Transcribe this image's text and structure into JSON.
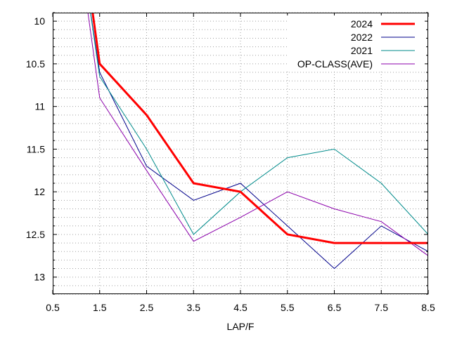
{
  "chart_data": {
    "type": "line",
    "title": "",
    "xlabel": "LAP/F",
    "ylabel": "",
    "xlim": [
      0.5,
      8.5
    ],
    "ylim": [
      9.9,
      13.2
    ],
    "y_inverted": true,
    "x_ticks": [
      "0.5",
      "1.5",
      "2.5",
      "3.5",
      "4.5",
      "5.5",
      "6.5",
      "7.5",
      "8.5"
    ],
    "y_ticks": [
      "10",
      "10.5",
      "11",
      "11.5",
      "12",
      "12.5",
      "13"
    ],
    "grid": true,
    "legend_position": "top-right",
    "series": [
      {
        "name": "2024",
        "color": "#ff0000",
        "weight": "thick",
        "points": [
          [
            1.3,
            9.7
          ],
          [
            1.5,
            10.5
          ],
          [
            2.5,
            11.1
          ],
          [
            3.5,
            11.9
          ],
          [
            4.5,
            12.0
          ],
          [
            5.5,
            12.5
          ],
          [
            6.5,
            12.6
          ],
          [
            7.5,
            12.6
          ],
          [
            8.5,
            12.6
          ]
        ]
      },
      {
        "name": "2022",
        "color": "#00008b",
        "weight": "thin",
        "points": [
          [
            1.25,
            9.7
          ],
          [
            1.5,
            10.6
          ],
          [
            2.5,
            11.7
          ],
          [
            3.5,
            12.1
          ],
          [
            4.5,
            11.9
          ],
          [
            5.5,
            12.4
          ],
          [
            6.5,
            12.9
          ],
          [
            7.5,
            12.4
          ],
          [
            8.5,
            12.7
          ]
        ]
      },
      {
        "name": "2021",
        "color": "#008b8b",
        "weight": "thin",
        "points": [
          [
            1.25,
            9.7
          ],
          [
            1.5,
            10.65
          ],
          [
            2.5,
            11.5
          ],
          [
            3.5,
            12.5
          ],
          [
            4.5,
            12.0
          ],
          [
            5.5,
            11.6
          ],
          [
            6.5,
            11.5
          ],
          [
            7.5,
            11.9
          ],
          [
            8.5,
            12.5
          ]
        ]
      },
      {
        "name": "OP-CLASS(AVE)",
        "color": "#8b00ab",
        "weight": "thin",
        "points": [
          [
            1.2,
            9.7
          ],
          [
            1.5,
            10.9
          ],
          [
            2.5,
            11.75
          ],
          [
            3.5,
            12.58
          ],
          [
            4.5,
            12.3
          ],
          [
            5.5,
            12.0
          ],
          [
            6.5,
            12.2
          ],
          [
            7.5,
            12.35
          ],
          [
            8.5,
            12.75
          ]
        ]
      }
    ]
  }
}
